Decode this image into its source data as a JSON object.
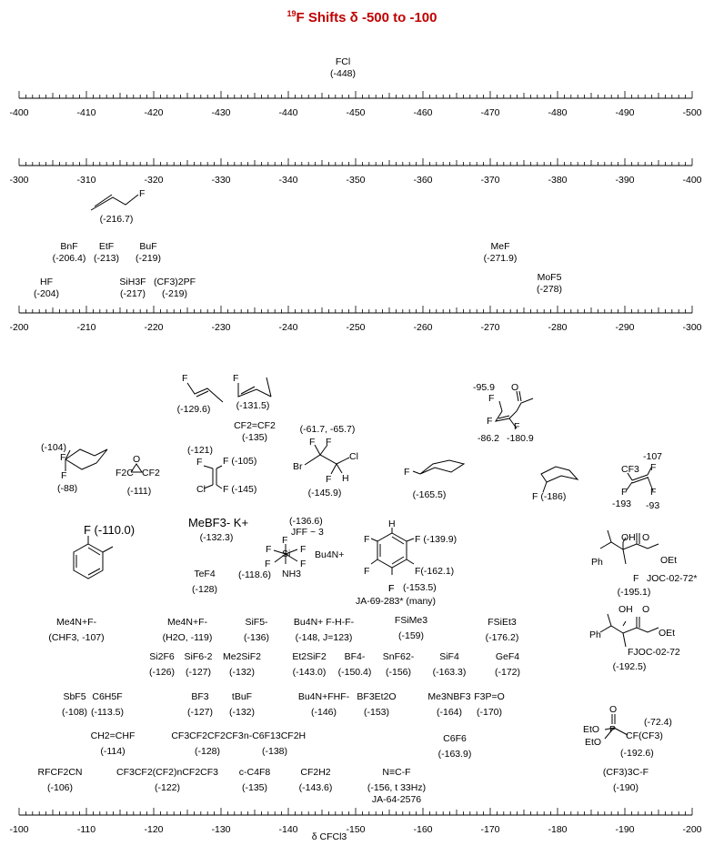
{
  "title": {
    "nucleus": "19",
    "text": "F Shifts δ -500 to -100"
  },
  "axes": [
    {
      "ticks": [
        "-400",
        "-410",
        "-420",
        "-430",
        "-440",
        "-450",
        "-460",
        "-470",
        "-480",
        "-490",
        "-500"
      ]
    },
    {
      "ticks": [
        "-300",
        "-310",
        "-320",
        "-330",
        "-340",
        "-350",
        "-360",
        "-370",
        "-380",
        "-390",
        "-400"
      ]
    },
    {
      "ticks": [
        "-200",
        "-210",
        "-220",
        "-230",
        "-240",
        "-250",
        "-260",
        "-270",
        "-280",
        "-290",
        "-300"
      ]
    },
    {
      "ticks": [
        "-100",
        "-110",
        "-120",
        "-130",
        "-140",
        "-150",
        "-160",
        "-170",
        "-180",
        "-190",
        "-200"
      ]
    }
  ],
  "axis_label": "δ CFCl3",
  "compounds": {
    "fcl": [
      "FCl",
      "(-448)"
    ],
    "allyl": [
      "F",
      "(-216.7)"
    ],
    "bnf": [
      "BnF",
      "(-206.4)"
    ],
    "etf": [
      "EtF",
      "(-213)"
    ],
    "buf": [
      "BuF",
      "(-219)"
    ],
    "mef": [
      "MeF",
      "(-271.9)"
    ],
    "hf": [
      "HF",
      "(-204)"
    ],
    "sih3f": [
      "SiH3F",
      "(-217)"
    ],
    "cf3pf": [
      "(CF3)2PF",
      "(-219)"
    ],
    "mof5": [
      "MoF5",
      "(-278)"
    ],
    "propene_e": [
      "F",
      "(-129.6)"
    ],
    "propene_z": [
      "F",
      "(-131.5)"
    ],
    "cf2cf2": [
      "CF2=CF2",
      "(-135)"
    ],
    "brcf2": [
      "(-61.7, -65.7)",
      "F",
      "F",
      "Br",
      "Cl",
      "F",
      "H",
      "(-145.9)"
    ],
    "enone": [
      "-95.9",
      "F",
      "O",
      "F",
      "-86.2",
      "-180.9",
      "F"
    ],
    "difluorocyc": [
      "(-104)",
      "F",
      "F",
      "(-88)"
    ],
    "epoxide": [
      "O",
      "F2C",
      "CF2",
      "(-111)"
    ],
    "trifluoro_vinyl": [
      "(-121)",
      "F",
      "F (-105)",
      "Cl",
      "F (-145)"
    ],
    "fcyc_eq": [
      "F",
      "(-165.5)"
    ],
    "fcyc_ax": [
      "F (-186)"
    ],
    "cf3_alkene": [
      "-107",
      "CF3",
      "F",
      "F",
      "F",
      "-193",
      "-93"
    ],
    "fluorotoluene": [
      "F (-110.0)"
    ],
    "mebf3": [
      "MeBF3- K+",
      "(-132.3)"
    ],
    "si_complex": [
      "(-136.6)",
      "JFF ~ 3",
      "F",
      "F",
      "F",
      "F",
      "F",
      "NH3",
      "Si",
      "Bu4N+",
      "(-118.6)"
    ],
    "tef4": [
      "TeF4",
      "(-128)"
    ],
    "c6f5h": [
      "H",
      "F",
      "F (-139.9)",
      "F",
      "F(-162.1)",
      "F",
      "(-153.5)",
      "F",
      "JA-69-283* (many)"
    ],
    "joc1": [
      "OH",
      "O",
      "Ph",
      "OEt",
      "F",
      "JOC-02-72*",
      "(-195.1)"
    ],
    "me4nf": [
      "Me4N+F-",
      "(CHF3, -107)"
    ],
    "me4nf2": [
      "Me4N+F-",
      "(H2O, -119)"
    ],
    "sif5": [
      "SiF5-",
      "(-136)"
    ],
    "bu4nfhf": [
      "Bu4N+ F-H-F-",
      "(-148, J=123)"
    ],
    "fsime3": [
      "FSiMe3",
      "(-159)"
    ],
    "fsiet3": [
      "FSiEt3",
      "(-176.2)"
    ],
    "joc2": [
      "OH",
      "O",
      "Ph",
      "OEt",
      "FJOC-02-72",
      "(-192.5)"
    ],
    "si2f6": [
      "Si2F6",
      "(-126)"
    ],
    "sif6": [
      "SiF6-2",
      "(-127)"
    ],
    "me2sif2": [
      "Me2SiF2",
      "(-132)"
    ],
    "et2sif2": [
      "Et2SiF2",
      "(-143.0)"
    ],
    "bf4": [
      "BF4-",
      "(-150.4)"
    ],
    "snf6": [
      "SnF62-",
      "(-156)"
    ],
    "sif4": [
      "SiF4",
      "(-163.3)"
    ],
    "gef4": [
      "GeF4",
      "(-172)"
    ],
    "sbf5": [
      "SbF5",
      "(-108)"
    ],
    "c6h5f": [
      "C6H5F",
      "(-113.5)"
    ],
    "bf3": [
      "BF3",
      "(-127)"
    ],
    "tbuf": [
      "tBuF",
      "(-132)"
    ],
    "bu4nfhf2": [
      "Bu4N+FHF-",
      "(-146)"
    ],
    "bf3et2o": [
      "BF3Et2O",
      "(-153)"
    ],
    "me3nbf3": [
      "Me3NBF3",
      "(-164)"
    ],
    "f3po": [
      "F3P=O",
      "(-170)"
    ],
    "phosphonate": [
      "O",
      "EtO",
      "P",
      "EtO",
      "CF(CF3)",
      "(-72.4)",
      "(-192.6)"
    ],
    "ch2chf": [
      "CH2=CHF",
      "(-114)"
    ],
    "c4f10": [
      "CF3CF2CF2CF3",
      "(-128)"
    ],
    "c6f13": [
      "n-C6F13CF2H",
      "(-138)"
    ],
    "c6f6": [
      "C6F6",
      "(-163.9)"
    ],
    "rfcf2cn": [
      "RFCF2CN",
      "(-106)"
    ],
    "cf3chain": [
      "CF3CF2(CF2)nCF2CF3",
      "(-122)"
    ],
    "c4f8": [
      "c-C4F8",
      "(-135)"
    ],
    "cf2h2": [
      "CF2H2",
      "(-143.6)"
    ],
    "ncf": [
      "N≡C-F",
      "(-156, t 33Hz)",
      "JA-64-2576"
    ],
    "cf3c": [
      "(CF3)3C-F",
      "(-190)"
    ]
  }
}
